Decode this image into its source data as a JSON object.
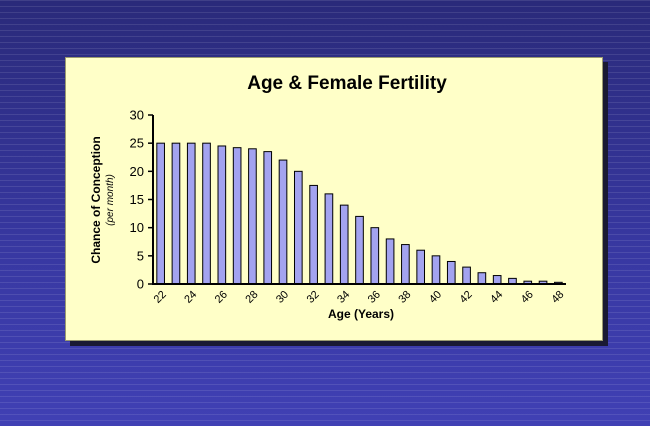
{
  "chart_data": {
    "type": "bar",
    "title": "Age & Female Fertility",
    "xlabel": "Age (Years)",
    "ylabel": "Chance of Conception",
    "ylabel_sub": "(per month)",
    "ylim": [
      0,
      30
    ],
    "yticks": [
      0,
      5,
      10,
      15,
      20,
      25,
      30
    ],
    "x": [
      22,
      23,
      24,
      25,
      26,
      27,
      28,
      29,
      30,
      31,
      32,
      33,
      34,
      35,
      36,
      37,
      38,
      39,
      40,
      41,
      42,
      43,
      44,
      45,
      46,
      47,
      48
    ],
    "x_tick_labels": [
      22,
      24,
      26,
      28,
      30,
      32,
      34,
      36,
      38,
      40,
      42,
      44,
      46,
      48
    ],
    "values": [
      25,
      25,
      25,
      25,
      24.5,
      24.2,
      24,
      23.5,
      22,
      20,
      17.5,
      16,
      14,
      12,
      10,
      8,
      7,
      6,
      5,
      4,
      3,
      2,
      1.5,
      1,
      0.5,
      0.5,
      0.3
    ],
    "bar_color": "#a3a3f0",
    "grid": false,
    "legend": "none"
  }
}
